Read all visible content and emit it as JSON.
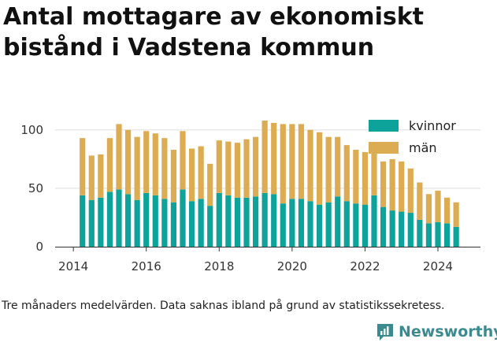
{
  "title": "Antal mottagare av ekonomiskt bistånd i Vadstena kommun",
  "note": "Tre månaders medelvärden. Data saknas ibland på grund av statistikssekretess.",
  "brand": {
    "name": "Newsworthy",
    "icon": "newsworthy-chart-bubble-logo"
  },
  "colors": {
    "kvinnor": "#0ea39a",
    "man": "#dcac52",
    "grid": "#dddddd",
    "axis": "#333333"
  },
  "chart_data": {
    "type": "bar",
    "stacked": true,
    "legend_position": "top-right",
    "grid": true,
    "ylim": [
      0,
      110
    ],
    "yticks": [
      0,
      50,
      100
    ],
    "xticks": [
      "2014",
      "2016",
      "2018",
      "2020",
      "2022",
      "2024"
    ],
    "x_range": [
      "2013-07",
      "2025-03"
    ],
    "x": [
      "2014-04",
      "2014-07",
      "2014-10",
      "2015-01",
      "2015-04",
      "2015-07",
      "2015-10",
      "2016-01",
      "2016-04",
      "2016-07",
      "2016-10",
      "2017-01",
      "2017-04",
      "2017-07",
      "2017-10",
      "2018-01",
      "2018-04",
      "2018-07",
      "2018-10",
      "2019-01",
      "2019-04",
      "2019-07",
      "2019-10",
      "2020-01",
      "2020-04",
      "2020-07",
      "2020-10",
      "2021-01",
      "2021-04",
      "2021-07",
      "2021-10",
      "2022-01",
      "2022-04",
      "2022-07",
      "2022-10",
      "2023-01",
      "2023-04",
      "2023-07",
      "2023-10",
      "2024-01",
      "2024-04",
      "2024-07"
    ],
    "series": [
      {
        "name": "kvinnor",
        "values": [
          44,
          40,
          42,
          47,
          49,
          45,
          40,
          46,
          44,
          41,
          38,
          49,
          39,
          41,
          35,
          46,
          44,
          42,
          42,
          43,
          46,
          45,
          37,
          41,
          41,
          39,
          36,
          38,
          43,
          39,
          37,
          36,
          44,
          34,
          31,
          30,
          29,
          23,
          20,
          21,
          20,
          17
        ]
      },
      {
        "name": "män",
        "values": [
          49,
          38,
          37,
          46,
          56,
          55,
          54,
          53,
          53,
          52,
          45,
          50,
          45,
          45,
          36,
          45,
          46,
          47,
          50,
          51,
          62,
          61,
          68,
          64,
          64,
          61,
          62,
          56,
          51,
          48,
          46,
          45,
          42,
          39,
          44,
          43,
          38,
          32,
          25,
          27,
          22,
          21
        ]
      }
    ]
  }
}
